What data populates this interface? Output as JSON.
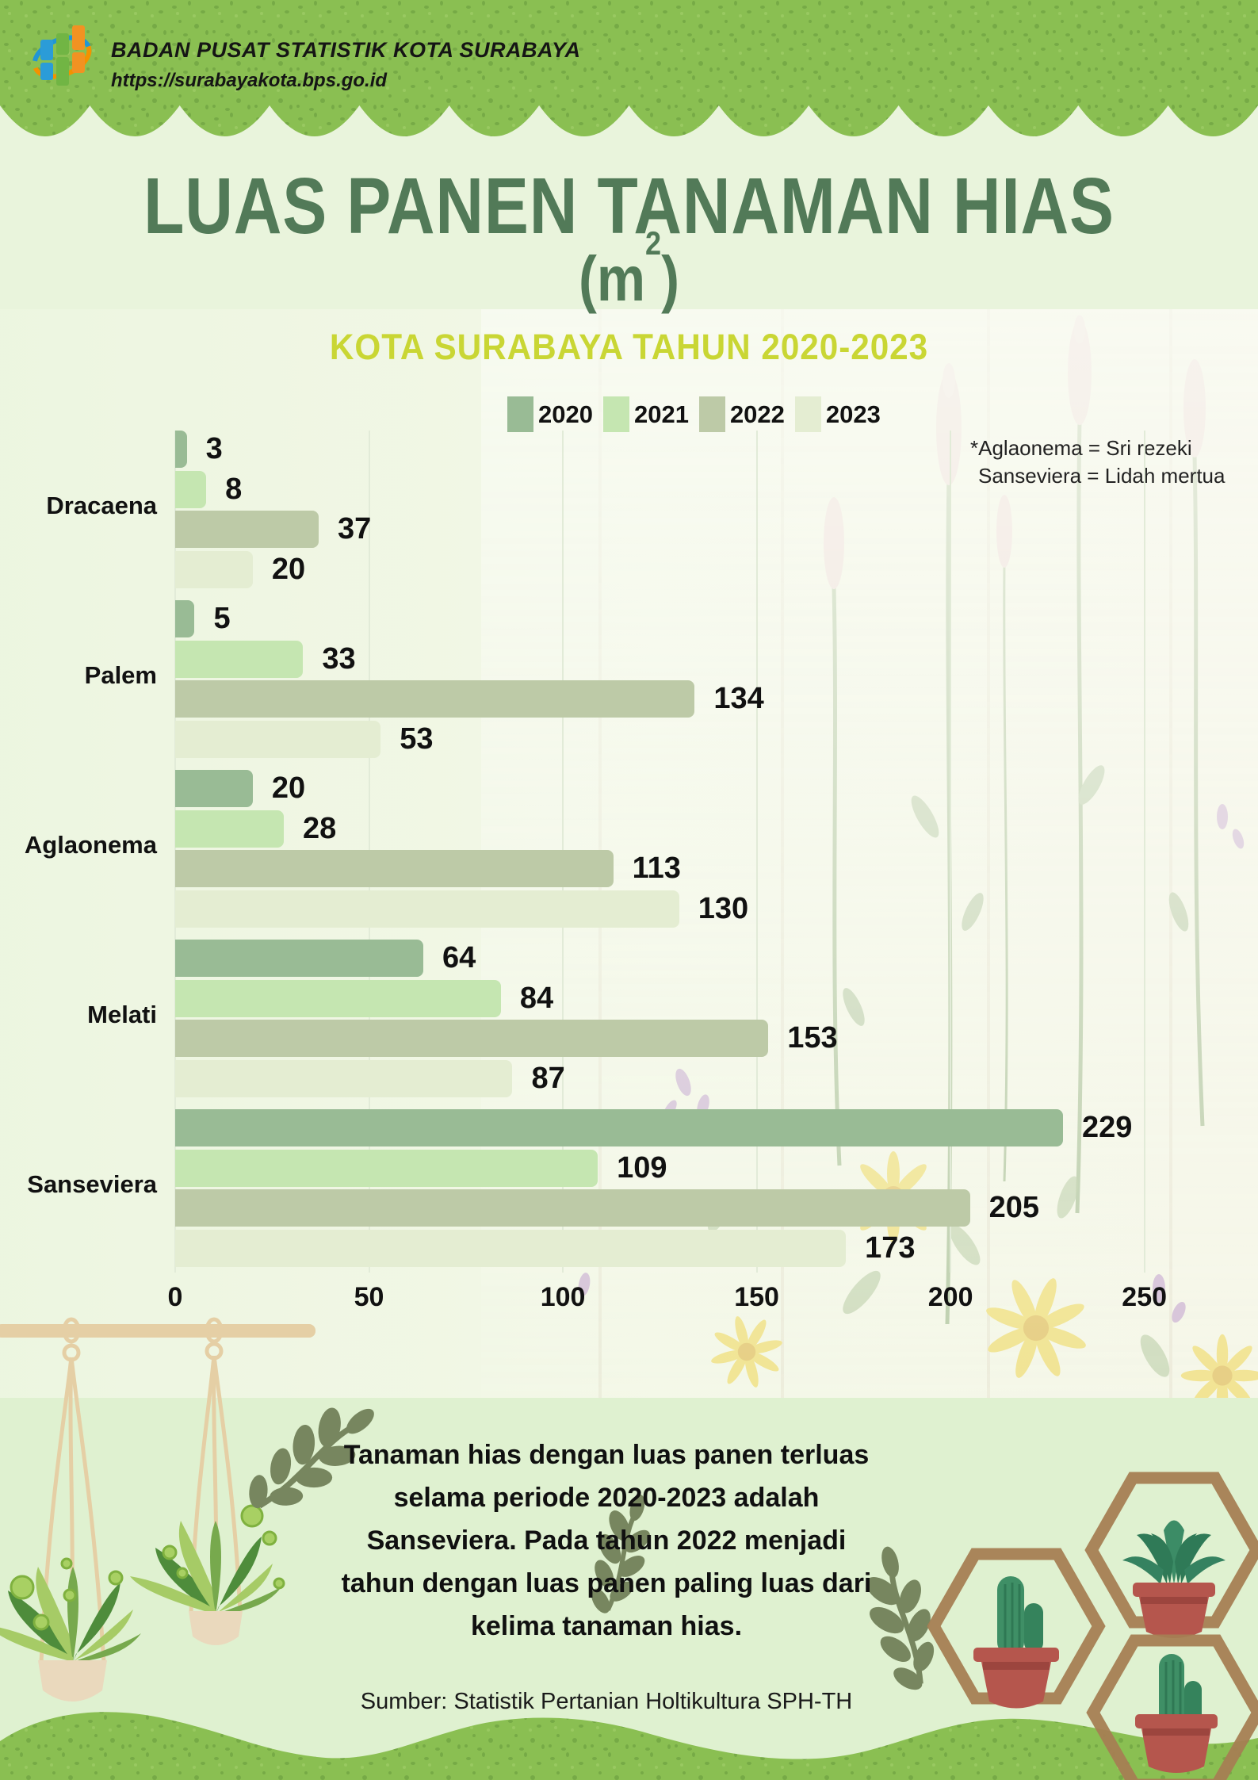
{
  "header": {
    "agency": "BADAN PUSAT STATISTIK KOTA SURABAYA",
    "url": "https://surabayakota.bps.go.id"
  },
  "title": {
    "main": "LUAS PANEN TANAMAN HIAS",
    "unit_prefix": "(m",
    "unit_exponent": "2",
    "unit_suffix": ")",
    "subtitle": "KOTA SURABAYA TAHUN 2020-2023"
  },
  "note": {
    "line1": "*Aglaonema = Sri rezeki",
    "line2": "Sanseviera = Lidah mertua"
  },
  "chart_data": {
    "type": "bar",
    "orientation": "horizontal",
    "title": "Luas Panen Tanaman Hias (m2), Kota Surabaya 2020-2023",
    "categories": [
      "Dracaena",
      "Palem",
      "Aglaonema",
      "Melati",
      "Sanseviera"
    ],
    "series": [
      {
        "name": "2020",
        "color": "#99bb95",
        "values": [
          3,
          5,
          20,
          64,
          229
        ]
      },
      {
        "name": "2021",
        "color": "#c5e6b1",
        "values": [
          8,
          33,
          28,
          84,
          109
        ]
      },
      {
        "name": "2022",
        "color": "#bdcaa7",
        "values": [
          37,
          134,
          113,
          153,
          205
        ]
      },
      {
        "name": "2023",
        "color": "#e4edd2",
        "values": [
          20,
          53,
          130,
          87,
          173
        ]
      }
    ],
    "xticks": [
      0,
      50,
      100,
      150,
      200,
      250
    ],
    "xlim": [
      0,
      256
    ],
    "grid": true,
    "legend_position": "top",
    "value_labels": true
  },
  "footer": {
    "paragraph_lines": [
      "Tanaman hias dengan luas panen terluas",
      "selama periode 2020-2023 adalah",
      "Sanseviera. Pada tahun 2022 menjadi",
      "tahun dengan luas panen paling luas dari",
      "kelima tanaman hias."
    ],
    "source": "Sumber: Statistik Pertanian Holtikultura SPH-TH"
  },
  "colors": {
    "band_green": "#8abf52",
    "band_speck": "#5d9038",
    "title_green": "#527a58",
    "subtitle_yellow": "#c9d634",
    "page_bg": "#e9f4dc",
    "section_bg": "#dff1d0",
    "gridline": "#e2ebd8"
  }
}
